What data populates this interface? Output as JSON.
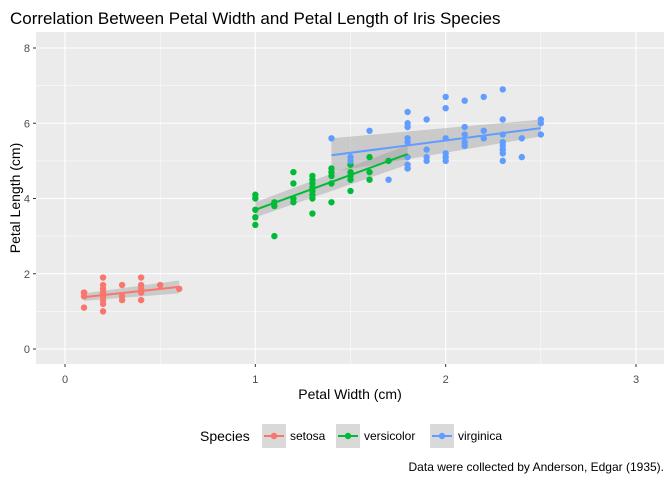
{
  "chart_data": {
    "type": "scatter",
    "title": "Correlation Between Petal Width and Petal Length of Iris Species",
    "xlabel": "Petal Width (cm)",
    "ylabel": "Petal Length (cm)",
    "caption": "Data were collected by Anderson, Edgar (1935).",
    "xlim": [
      0,
      3
    ],
    "ylim": [
      0,
      8
    ],
    "x_ticks": [
      "0",
      "1",
      "2",
      "3"
    ],
    "y_ticks": [
      "0",
      "2",
      "4",
      "6",
      "8"
    ],
    "grid": true,
    "background": "#ebebeb",
    "legend": {
      "title": "Species",
      "position": "bottom",
      "entries": [
        "setosa",
        "versicolor",
        "virginica"
      ]
    },
    "series": [
      {
        "name": "setosa",
        "color": "#f8766d",
        "points": [
          [
            0.1,
            1.1
          ],
          [
            0.1,
            1.4
          ],
          [
            0.1,
            1.5
          ],
          [
            0.1,
            1.5
          ],
          [
            0.2,
            1.0
          ],
          [
            0.2,
            1.2
          ],
          [
            0.2,
            1.3
          ],
          [
            0.2,
            1.4
          ],
          [
            0.2,
            1.5
          ],
          [
            0.2,
            1.6
          ],
          [
            0.2,
            1.7
          ],
          [
            0.2,
            1.9
          ],
          [
            0.3,
            1.3
          ],
          [
            0.3,
            1.4
          ],
          [
            0.3,
            1.7
          ],
          [
            0.4,
            1.3
          ],
          [
            0.4,
            1.5
          ],
          [
            0.4,
            1.6
          ],
          [
            0.4,
            1.7
          ],
          [
            0.4,
            1.9
          ],
          [
            0.5,
            1.7
          ],
          [
            0.6,
            1.6
          ]
        ],
        "fit": {
          "x": [
            0.1,
            0.6
          ],
          "y": [
            1.38,
            1.65
          ],
          "band_lower": [
            1.28,
            1.48
          ],
          "band_upper": [
            1.48,
            1.82
          ]
        }
      },
      {
        "name": "versicolor",
        "color": "#00ba38",
        "points": [
          [
            1.0,
            3.3
          ],
          [
            1.0,
            3.5
          ],
          [
            1.0,
            3.7
          ],
          [
            1.0,
            4.0
          ],
          [
            1.0,
            4.1
          ],
          [
            1.1,
            3.0
          ],
          [
            1.1,
            3.8
          ],
          [
            1.1,
            3.9
          ],
          [
            1.2,
            3.9
          ],
          [
            1.2,
            4.0
          ],
          [
            1.2,
            4.4
          ],
          [
            1.2,
            4.7
          ],
          [
            1.3,
            3.6
          ],
          [
            1.3,
            4.0
          ],
          [
            1.3,
            4.1
          ],
          [
            1.3,
            4.2
          ],
          [
            1.3,
            4.3
          ],
          [
            1.3,
            4.4
          ],
          [
            1.3,
            4.5
          ],
          [
            1.3,
            4.6
          ],
          [
            1.4,
            3.9
          ],
          [
            1.4,
            4.4
          ],
          [
            1.4,
            4.6
          ],
          [
            1.4,
            4.7
          ],
          [
            1.4,
            4.8
          ],
          [
            1.5,
            4.2
          ],
          [
            1.5,
            4.5
          ],
          [
            1.5,
            4.6
          ],
          [
            1.5,
            4.7
          ],
          [
            1.5,
            4.9
          ],
          [
            1.6,
            4.5
          ],
          [
            1.6,
            4.7
          ],
          [
            1.6,
            5.1
          ],
          [
            1.7,
            5.0
          ],
          [
            1.8,
            4.8
          ]
        ],
        "fit": {
          "x": [
            1.0,
            1.8
          ],
          "y": [
            3.7,
            5.18
          ],
          "band_lower": [
            3.5,
            4.9
          ],
          "band_upper": [
            3.9,
            5.42
          ]
        }
      },
      {
        "name": "virginica",
        "color": "#619cff",
        "points": [
          [
            1.4,
            5.6
          ],
          [
            1.5,
            5.0
          ],
          [
            1.5,
            5.1
          ],
          [
            1.6,
            5.8
          ],
          [
            1.7,
            4.5
          ],
          [
            1.8,
            4.8
          ],
          [
            1.8,
            4.9
          ],
          [
            1.8,
            5.1
          ],
          [
            1.8,
            5.5
          ],
          [
            1.8,
            5.6
          ],
          [
            1.8,
            5.9
          ],
          [
            1.8,
            6.0
          ],
          [
            1.8,
            6.3
          ],
          [
            1.9,
            5.0
          ],
          [
            1.9,
            5.1
          ],
          [
            1.9,
            5.3
          ],
          [
            1.9,
            6.1
          ],
          [
            2.0,
            5.0
          ],
          [
            2.0,
            5.1
          ],
          [
            2.0,
            5.2
          ],
          [
            2.0,
            5.6
          ],
          [
            2.0,
            6.4
          ],
          [
            2.0,
            6.7
          ],
          [
            2.1,
            5.4
          ],
          [
            2.1,
            5.5
          ],
          [
            2.1,
            5.7
          ],
          [
            2.1,
            5.9
          ],
          [
            2.1,
            6.6
          ],
          [
            2.2,
            5.6
          ],
          [
            2.2,
            5.8
          ],
          [
            2.2,
            6.7
          ],
          [
            2.3,
            5.0
          ],
          [
            2.3,
            5.2
          ],
          [
            2.3,
            5.3
          ],
          [
            2.3,
            5.4
          ],
          [
            2.3,
            5.5
          ],
          [
            2.3,
            5.7
          ],
          [
            2.3,
            6.1
          ],
          [
            2.3,
            6.9
          ],
          [
            2.4,
            5.1
          ],
          [
            2.4,
            5.6
          ],
          [
            2.5,
            5.7
          ],
          [
            2.5,
            6.0
          ],
          [
            2.5,
            6.1
          ]
        ],
        "fit": {
          "x": [
            1.4,
            2.5
          ],
          "y": [
            5.15,
            5.87
          ],
          "band_lower": [
            4.7,
            5.65
          ],
          "band_upper": [
            5.6,
            6.1
          ]
        }
      }
    ]
  }
}
